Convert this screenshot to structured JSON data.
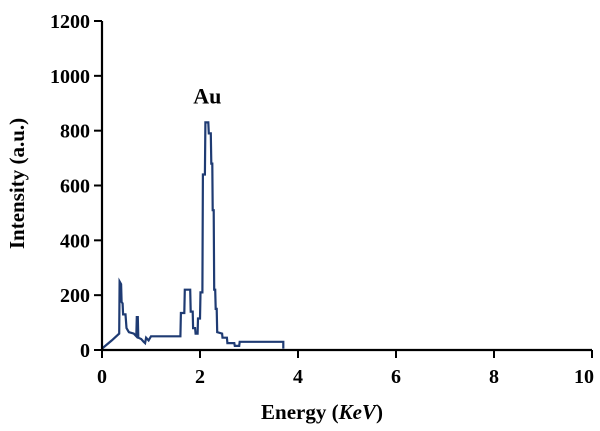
{
  "chart_data": {
    "type": "line",
    "xlabel_prefix": "Energy (",
    "xlabel_unit": "KeV",
    "xlabel_suffix": ")",
    "ylabel": "Intensity (a.u.)",
    "xlim": [
      0,
      10
    ],
    "ylim": [
      0,
      1200
    ],
    "x_ticks": [
      0,
      2,
      4,
      6,
      8,
      10
    ],
    "y_ticks": [
      0,
      200,
      400,
      600,
      800,
      1000,
      1200
    ],
    "annotations": [
      {
        "text": "Au",
        "x": 2.15,
        "y": 900
      }
    ],
    "series": [
      {
        "color": "#1f3b73",
        "points": [
          [
            0.0,
            5
          ],
          [
            0.2,
            35
          ],
          [
            0.35,
            60
          ],
          [
            0.36,
            250
          ],
          [
            0.39,
            240
          ],
          [
            0.4,
            175
          ],
          [
            0.42,
            170
          ],
          [
            0.43,
            130
          ],
          [
            0.48,
            130
          ],
          [
            0.5,
            80
          ],
          [
            0.55,
            65
          ],
          [
            0.65,
            60
          ],
          [
            0.7,
            50
          ],
          [
            0.71,
            120
          ],
          [
            0.73,
            120
          ],
          [
            0.74,
            45
          ],
          [
            0.8,
            40
          ],
          [
            0.85,
            30
          ],
          [
            0.88,
            25
          ],
          [
            0.9,
            45
          ],
          [
            0.95,
            35
          ],
          [
            1.0,
            50
          ],
          [
            1.6,
            50
          ],
          [
            1.61,
            135
          ],
          [
            1.68,
            135
          ],
          [
            1.69,
            220
          ],
          [
            1.8,
            220
          ],
          [
            1.81,
            140
          ],
          [
            1.85,
            140
          ],
          [
            1.86,
            80
          ],
          [
            1.9,
            80
          ],
          [
            1.91,
            60
          ],
          [
            1.95,
            60
          ],
          [
            1.96,
            115
          ],
          [
            2.0,
            115
          ],
          [
            2.01,
            210
          ],
          [
            2.05,
            210
          ],
          [
            2.06,
            640
          ],
          [
            2.1,
            640
          ],
          [
            2.11,
            830
          ],
          [
            2.17,
            830
          ],
          [
            2.18,
            790
          ],
          [
            2.22,
            790
          ],
          [
            2.23,
            680
          ],
          [
            2.25,
            680
          ],
          [
            2.26,
            510
          ],
          [
            2.28,
            510
          ],
          [
            2.29,
            220
          ],
          [
            2.31,
            220
          ],
          [
            2.32,
            150
          ],
          [
            2.34,
            150
          ],
          [
            2.35,
            65
          ],
          [
            2.45,
            60
          ],
          [
            2.46,
            45
          ],
          [
            2.55,
            45
          ],
          [
            2.56,
            25
          ],
          [
            2.7,
            25
          ],
          [
            2.71,
            15
          ],
          [
            2.8,
            15
          ],
          [
            2.81,
            30
          ],
          [
            3.7,
            30
          ],
          [
            3.7,
            5
          ]
        ]
      }
    ]
  }
}
